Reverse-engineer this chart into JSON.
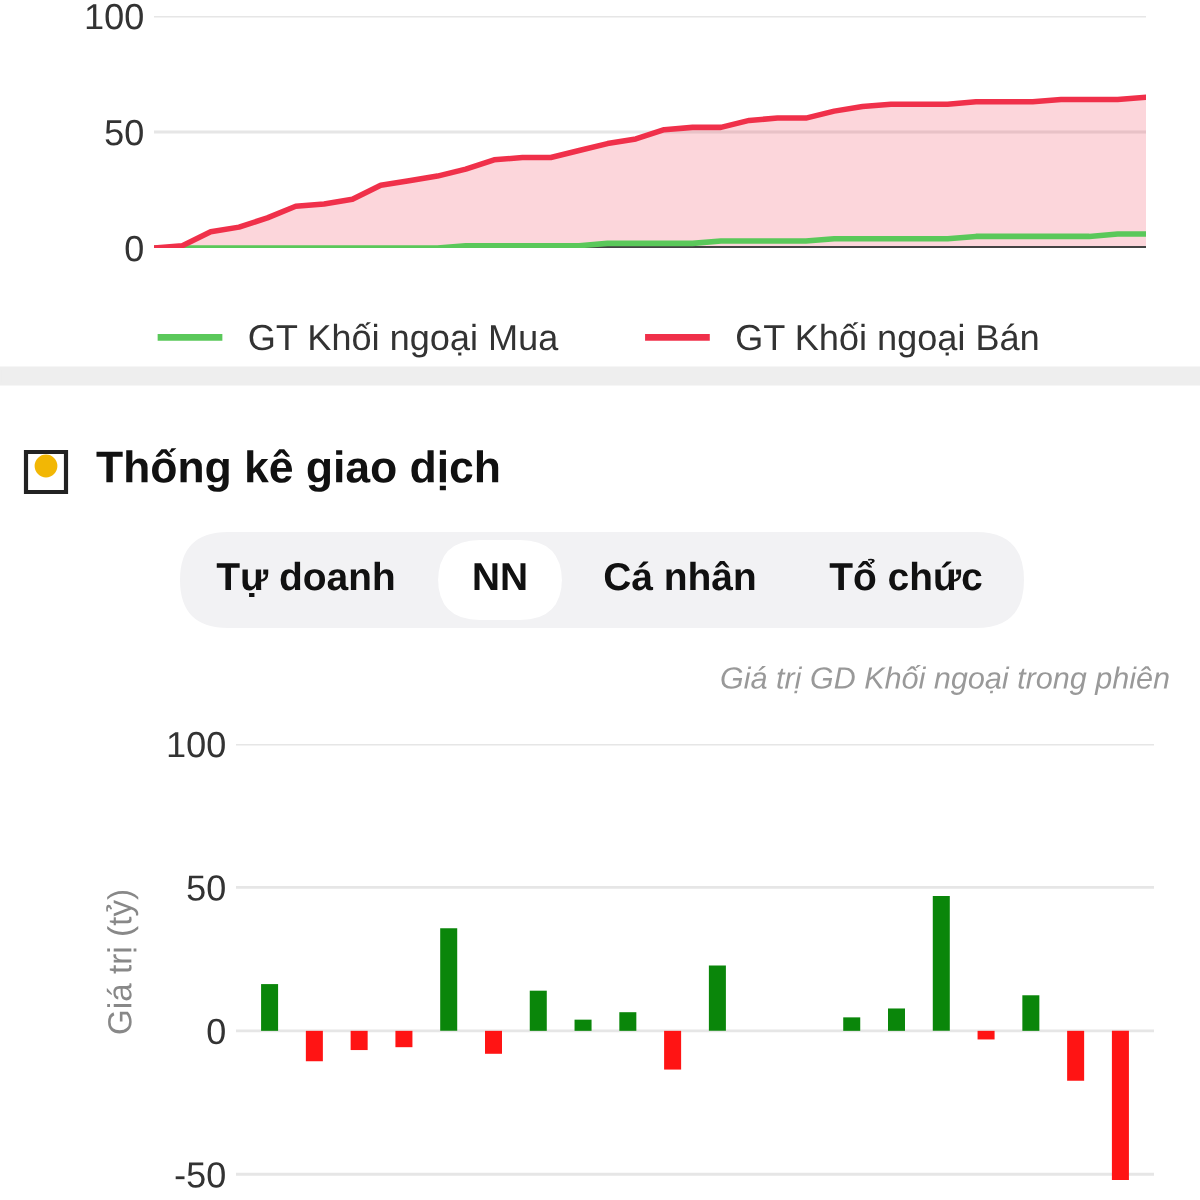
{
  "chart_data": [
    {
      "type": "area",
      "categories": [
        null,
        null,
        null,
        null,
        null,
        null,
        null,
        null,
        null,
        null,
        null,
        null,
        null,
        null,
        null,
        null,
        null,
        null,
        null,
        null,
        null,
        null,
        null,
        null,
        null,
        null,
        null,
        null,
        null,
        null,
        null,
        null,
        null,
        null,
        null,
        null
      ],
      "series": [
        {
          "name": "GT Khối ngoại Mua",
          "type": "line",
          "color": "#5ac85a",
          "values": [
            0,
            0,
            0,
            0,
            0,
            0,
            0,
            0,
            0,
            0,
            0,
            1,
            1,
            1,
            1,
            1,
            2,
            2,
            2,
            2,
            3,
            3,
            3,
            3,
            4,
            4,
            4,
            4,
            4,
            5,
            5,
            5,
            5,
            5,
            6,
            6
          ]
        },
        {
          "name": "GT Khối ngoại Bán",
          "type": "area",
          "color": "#f0304a",
          "values": [
            0,
            1,
            7,
            9,
            13,
            18,
            19,
            21,
            27,
            29,
            31,
            34,
            38,
            39,
            39,
            42,
            45,
            47,
            51,
            52,
            52,
            55,
            56,
            56,
            59,
            61,
            62,
            62,
            62,
            63,
            63,
            63,
            64,
            64,
            64,
            65
          ]
        }
      ],
      "ylim": [
        0,
        100
      ],
      "yticks": [
        0,
        50,
        100
      ],
      "grid": "y",
      "legend": "bottom",
      "tick_labels": "y"
    },
    {
      "type": "bar",
      "title": "Thống kê giao dịch",
      "subtitle": "Giá trị GD Khối ngoại trong phiên",
      "ylabel": "Giá trị (tỷ)",
      "annotations": [
        "Tự doanh",
        "NN",
        "Cá nhân",
        "Tổ chức"
      ],
      "categories": [
        null,
        null,
        null,
        null,
        null,
        null,
        null,
        null,
        null,
        null,
        null,
        null,
        null,
        null,
        null,
        null,
        null,
        null,
        null,
        null
      ],
      "values": [
        16.3,
        -10.6,
        -6.7,
        -5.7,
        35.8,
        -8,
        14,
        3.9,
        6.5,
        -13.5,
        22.8,
        0,
        0,
        4.7,
        7.8,
        47,
        -3,
        12.4,
        -17.4,
        -52
      ],
      "colors": [
        "#0a860a",
        "#ff1414",
        "#ff1414",
        "#ff1414",
        "#0a860a",
        "#ff1414",
        "#0a860a",
        "#0a860a",
        "#0a860a",
        "#ff1414",
        "#0a860a",
        "#0a860a",
        "#0a860a",
        "#0a860a",
        "#0a860a",
        "#0a860a",
        "#ff1414",
        "#0a860a",
        "#ff1414",
        "#ff1414"
      ],
      "ylim": [
        -52,
        100
      ],
      "yticks": [
        -50,
        0,
        50,
        100
      ],
      "grid": "y",
      "tick_labels": "y"
    }
  ]
}
